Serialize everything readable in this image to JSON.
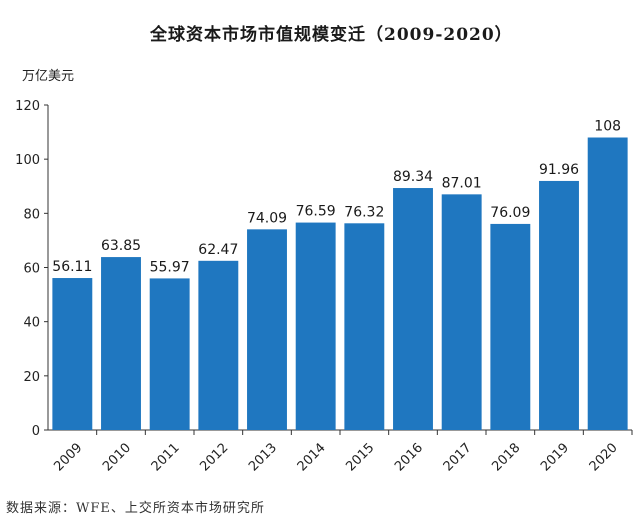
{
  "chart_data": {
    "type": "bar",
    "title": "全球资本市场市值规模变迁（2009-2020）",
    "ylabel": "万亿美元",
    "xlabel": "",
    "categories": [
      "2009",
      "2010",
      "2011",
      "2012",
      "2013",
      "2014",
      "2015",
      "2016",
      "2017",
      "2018",
      "2019",
      "2020"
    ],
    "values": [
      56.11,
      63.85,
      55.97,
      62.47,
      74.09,
      76.59,
      76.32,
      89.34,
      87.01,
      76.09,
      91.96,
      108
    ],
    "value_labels": [
      "56.11",
      "63.85",
      "55.97",
      "62.47",
      "74.09",
      "76.59",
      "76.32",
      "89.34",
      "87.01",
      "76.09",
      "91.96",
      "108"
    ],
    "ylim": [
      0,
      120
    ],
    "yticks": [
      "0",
      "20",
      "40",
      "60",
      "80",
      "100",
      "120"
    ],
    "grid": false,
    "legend": "none",
    "bar_color": "#1f77c0",
    "source": "数据来源：WFE、上交所资本市场研究所"
  }
}
